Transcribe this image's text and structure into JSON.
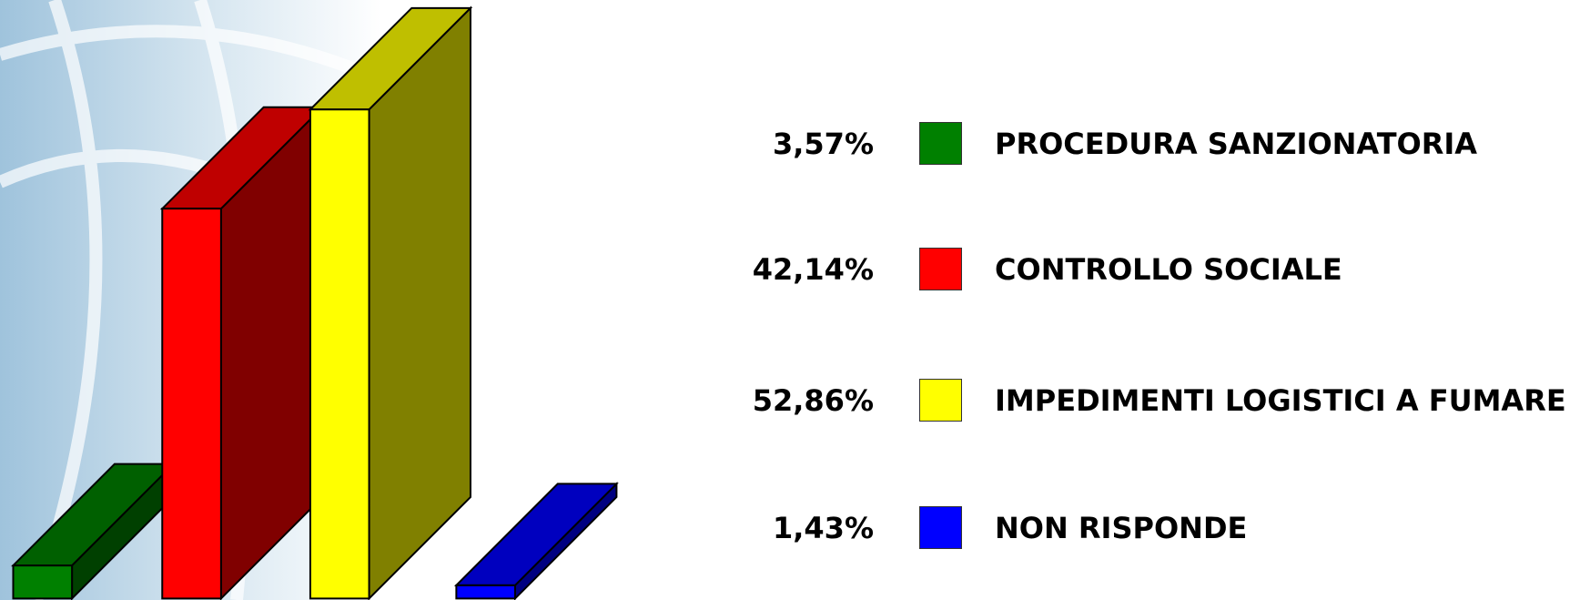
{
  "chart_data": {
    "type": "bar3d",
    "categories": [
      "PROCEDURA SANZIONATORIA",
      "CONTROLLO SOCIALE",
      "IMPEDIMENTI LOGISTICI A FUMARE",
      "NON RISPONDE"
    ],
    "values": [
      3.57,
      42.14,
      52.86,
      1.43
    ],
    "value_labels": [
      "3,57%",
      "42,14%",
      "52,86%",
      "1,43%"
    ],
    "colors": [
      "#008000",
      "#ff0000",
      "#ffff00",
      "#0000ff"
    ],
    "legend": "right"
  }
}
